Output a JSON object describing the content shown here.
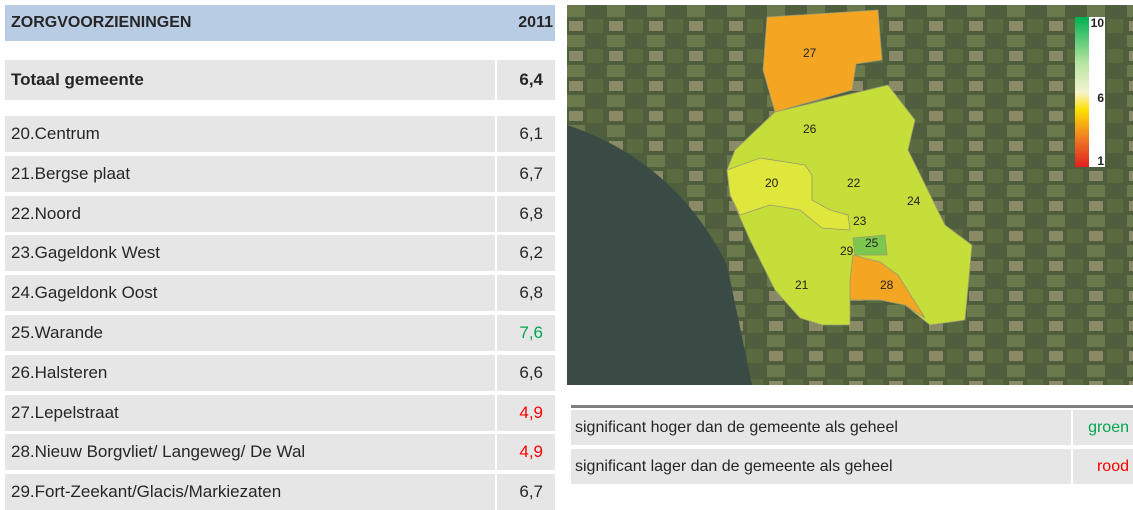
{
  "table": {
    "header": [
      "ZORGVOORZIENINGEN",
      "2011"
    ],
    "total": [
      "Totaal gemeente",
      "6,4"
    ],
    "rows": [
      {
        "name": "20.Centrum",
        "value": "6,1",
        "color": "#262626"
      },
      {
        "name": "21.Bergse plaat",
        "value": "6,7",
        "color": "#262626"
      },
      {
        "name": "22.Noord",
        "value": "6,8",
        "color": "#262626"
      },
      {
        "name": "23.Gageldonk West",
        "value": "6,2",
        "color": "#262626"
      },
      {
        "name": "24.Gageldonk Oost",
        "value": "6,8",
        "color": "#262626"
      },
      {
        "name": "25.Warande",
        "value": "7,6",
        "color": "#00a651"
      },
      {
        "name": "26.Halsteren",
        "value": "6,6",
        "color": "#262626"
      },
      {
        "name": "27.Lepelstraat",
        "value": "4,9",
        "color": "#ff0000"
      },
      {
        "name": "28.Nieuw Borgvliet/ Langeweg/ De Wal",
        "value": "4,9",
        "color": "#ff0000"
      },
      {
        "name": "29.Fort-Zeekant/Glacis/Markiezaten",
        "value": "6,7",
        "color": "#262626"
      }
    ]
  },
  "map": {
    "labels": [
      "27",
      "26",
      "20",
      "22",
      "24",
      "23",
      "25",
      "29",
      "21",
      "28"
    ],
    "scale": [
      "10",
      "6",
      "1"
    ]
  },
  "legend": {
    "rows": [
      {
        "text": "significant hoger dan de gemeente als geheel",
        "word": "groen",
        "color": "#00a651"
      },
      {
        "text": "significant lager dan de gemeente als geheel",
        "word": "rood",
        "color": "#ff0000"
      }
    ]
  }
}
